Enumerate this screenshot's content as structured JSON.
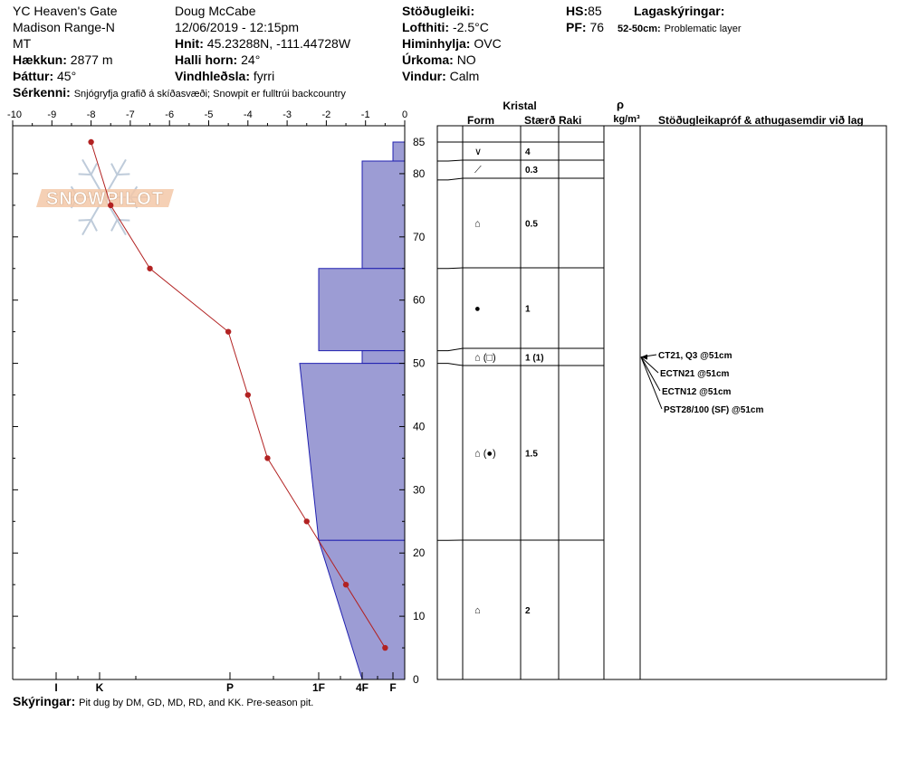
{
  "header": {
    "site": "YC Heaven's Gate",
    "range": "Madison Range-N",
    "state": "MT",
    "elevation_label": "Hækkun:",
    "elevation_value": "2877 m",
    "aspect_label": "Þáttur:",
    "aspect_value": "45°",
    "feature_label": "Sérkenni:",
    "feature_value": "Snjógryfja grafið á skíðasvæði;  Snowpit er fulltrúi backcountry",
    "observer": "Doug McCabe",
    "datetime": "12/06/2019 - 12:15pm",
    "coords_label": "Hnit:",
    "coords_value": "45.23288N, -111.44728W",
    "slope_label": "Halli horn:",
    "slope_value": "24°",
    "wind_label": "Vindhleðsla:",
    "wind_value": "fyrri",
    "stability_label": "Stöðugleiki:",
    "stability_value": "",
    "airtemp_label": "Lofthiti:",
    "airtemp_value": "-2.5°C",
    "sky_label": "Himinhylja:",
    "sky_value": "OVC",
    "precip_label": "Úrkoma:",
    "precip_value": "NO",
    "windspeed_label": "Vindur:",
    "windspeed_value": "Calm",
    "hs_label": "HS:",
    "hs_value": "85",
    "pf_label": "PF:",
    "pf_value": "76",
    "legend_title": "Lagaskýringar:",
    "problem_range": "52-50cm:",
    "problem_text": "Problematic layer"
  },
  "footer": {
    "notes_label": "Skýringar:",
    "notes_value": "Pit dug by DM, GD, MD, RD, and KK. Pre-season pit."
  },
  "watermark": "SNOWPILOT",
  "table_headers": {
    "kristal": "Kristal",
    "form": "Form",
    "size": "Stærð",
    "moisture": "Raki",
    "rho": "ρ",
    "density_unit": "kg/m³",
    "tests": "Stöðugleikapróf & athugasemdir við lag"
  },
  "colors": {
    "hardness_fill": "#9c9cd4",
    "hardness_stroke": "#2020b0",
    "temp_line": "#b22222"
  },
  "chart_data": {
    "type": "line",
    "temp_axis": {
      "min": -10,
      "max": 0,
      "ticks": [
        "-10",
        "-9",
        "-8",
        "-7",
        "-6",
        "-5",
        "-4",
        "-3",
        "-2",
        "-1",
        "0"
      ]
    },
    "depth_axis": {
      "min": 0,
      "max": 85,
      "ticks": [
        "0",
        "10",
        "20",
        "30",
        "40",
        "50",
        "60",
        "70",
        "80"
      ],
      "top_tick": "85"
    },
    "hardness_ticks": [
      "I",
      "K",
      "P",
      "1F",
      "4F",
      "F"
    ],
    "temperature_profile": [
      {
        "depth": 85,
        "temp": -8.0
      },
      {
        "depth": 75,
        "temp": -7.5
      },
      {
        "depth": 65,
        "temp": -6.5
      },
      {
        "depth": 55,
        "temp": -4.5
      },
      {
        "depth": 45,
        "temp": -4.0
      },
      {
        "depth": 35,
        "temp": -3.5
      },
      {
        "depth": 25,
        "temp": -2.5
      },
      {
        "depth": 15,
        "temp": -1.5
      },
      {
        "depth": 5,
        "temp": -0.5
      }
    ],
    "hardness_profile": [
      {
        "top": 85,
        "bottom": 82,
        "hardness": "F"
      },
      {
        "top": 82,
        "bottom": 65,
        "hardness": "4F"
      },
      {
        "top": 65,
        "bottom": 52,
        "hardness": "1F"
      },
      {
        "top": 52,
        "bottom": 50,
        "hardness": "4F"
      },
      {
        "top": 50,
        "bottom": 22,
        "hardness_top": "P-1F",
        "hardness_bottom": "1F"
      },
      {
        "top": 22,
        "bottom": 0,
        "hardness_top": "1F",
        "hardness_bottom": "4F"
      }
    ]
  },
  "layers": [
    {
      "top": 85,
      "bottom": 82,
      "form": "∨",
      "size": "4"
    },
    {
      "top": 82,
      "bottom": 79,
      "form": "⟋",
      "size": "0.3"
    },
    {
      "top": 79,
      "bottom": 65,
      "form": "⌂",
      "size": "0.5"
    },
    {
      "top": 65,
      "bottom": 52,
      "form": "●",
      "size": "1"
    },
    {
      "top": 52,
      "bottom": 50,
      "form": "⌂ (□)",
      "size": "1 (1)"
    },
    {
      "top": 50,
      "bottom": 22,
      "form": "⌂ (●)",
      "size": "1.5"
    },
    {
      "top": 22,
      "bottom": 0,
      "form": "⌂",
      "size": "2"
    }
  ],
  "tests": [
    "CT21, Q3 @51cm",
    "ECTN21 @51cm",
    "ECTN12 @51cm",
    "PST28/100 (SF) @51cm"
  ]
}
